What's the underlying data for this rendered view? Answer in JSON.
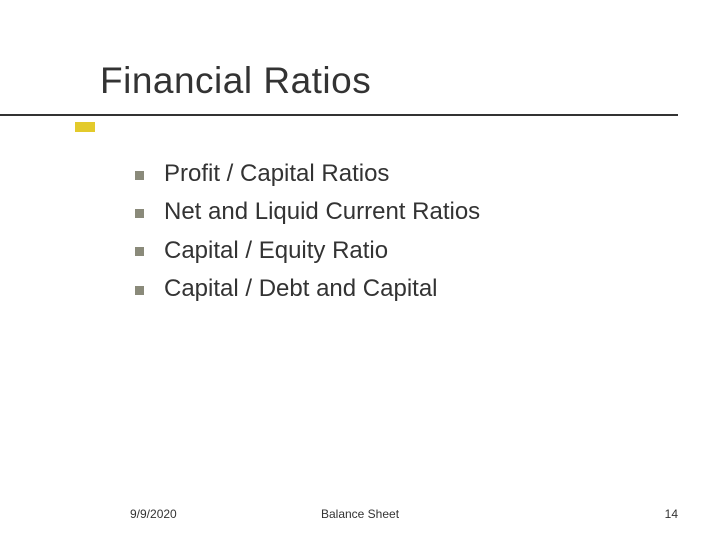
{
  "title": "Financial Ratios",
  "bullets": [
    "Profit / Capital Ratios",
    "Net and Liquid Current Ratios",
    "Capital / Equity Ratio",
    "Capital / Debt and Capital"
  ],
  "footer": {
    "date": "9/9/2020",
    "center": "Balance Sheet",
    "page": "14"
  },
  "style": {
    "background_color": "#ffffff",
    "title_color": "#333333",
    "title_fontsize": 37,
    "body_fontsize": 24,
    "bullet_marker_color": "#8a8a7a",
    "bullet_marker_size": 9,
    "accent_line_color": "#333333",
    "accent_stub_color": "#e3ca2b",
    "footer_fontsize": 12,
    "font_family": "Verdana"
  }
}
